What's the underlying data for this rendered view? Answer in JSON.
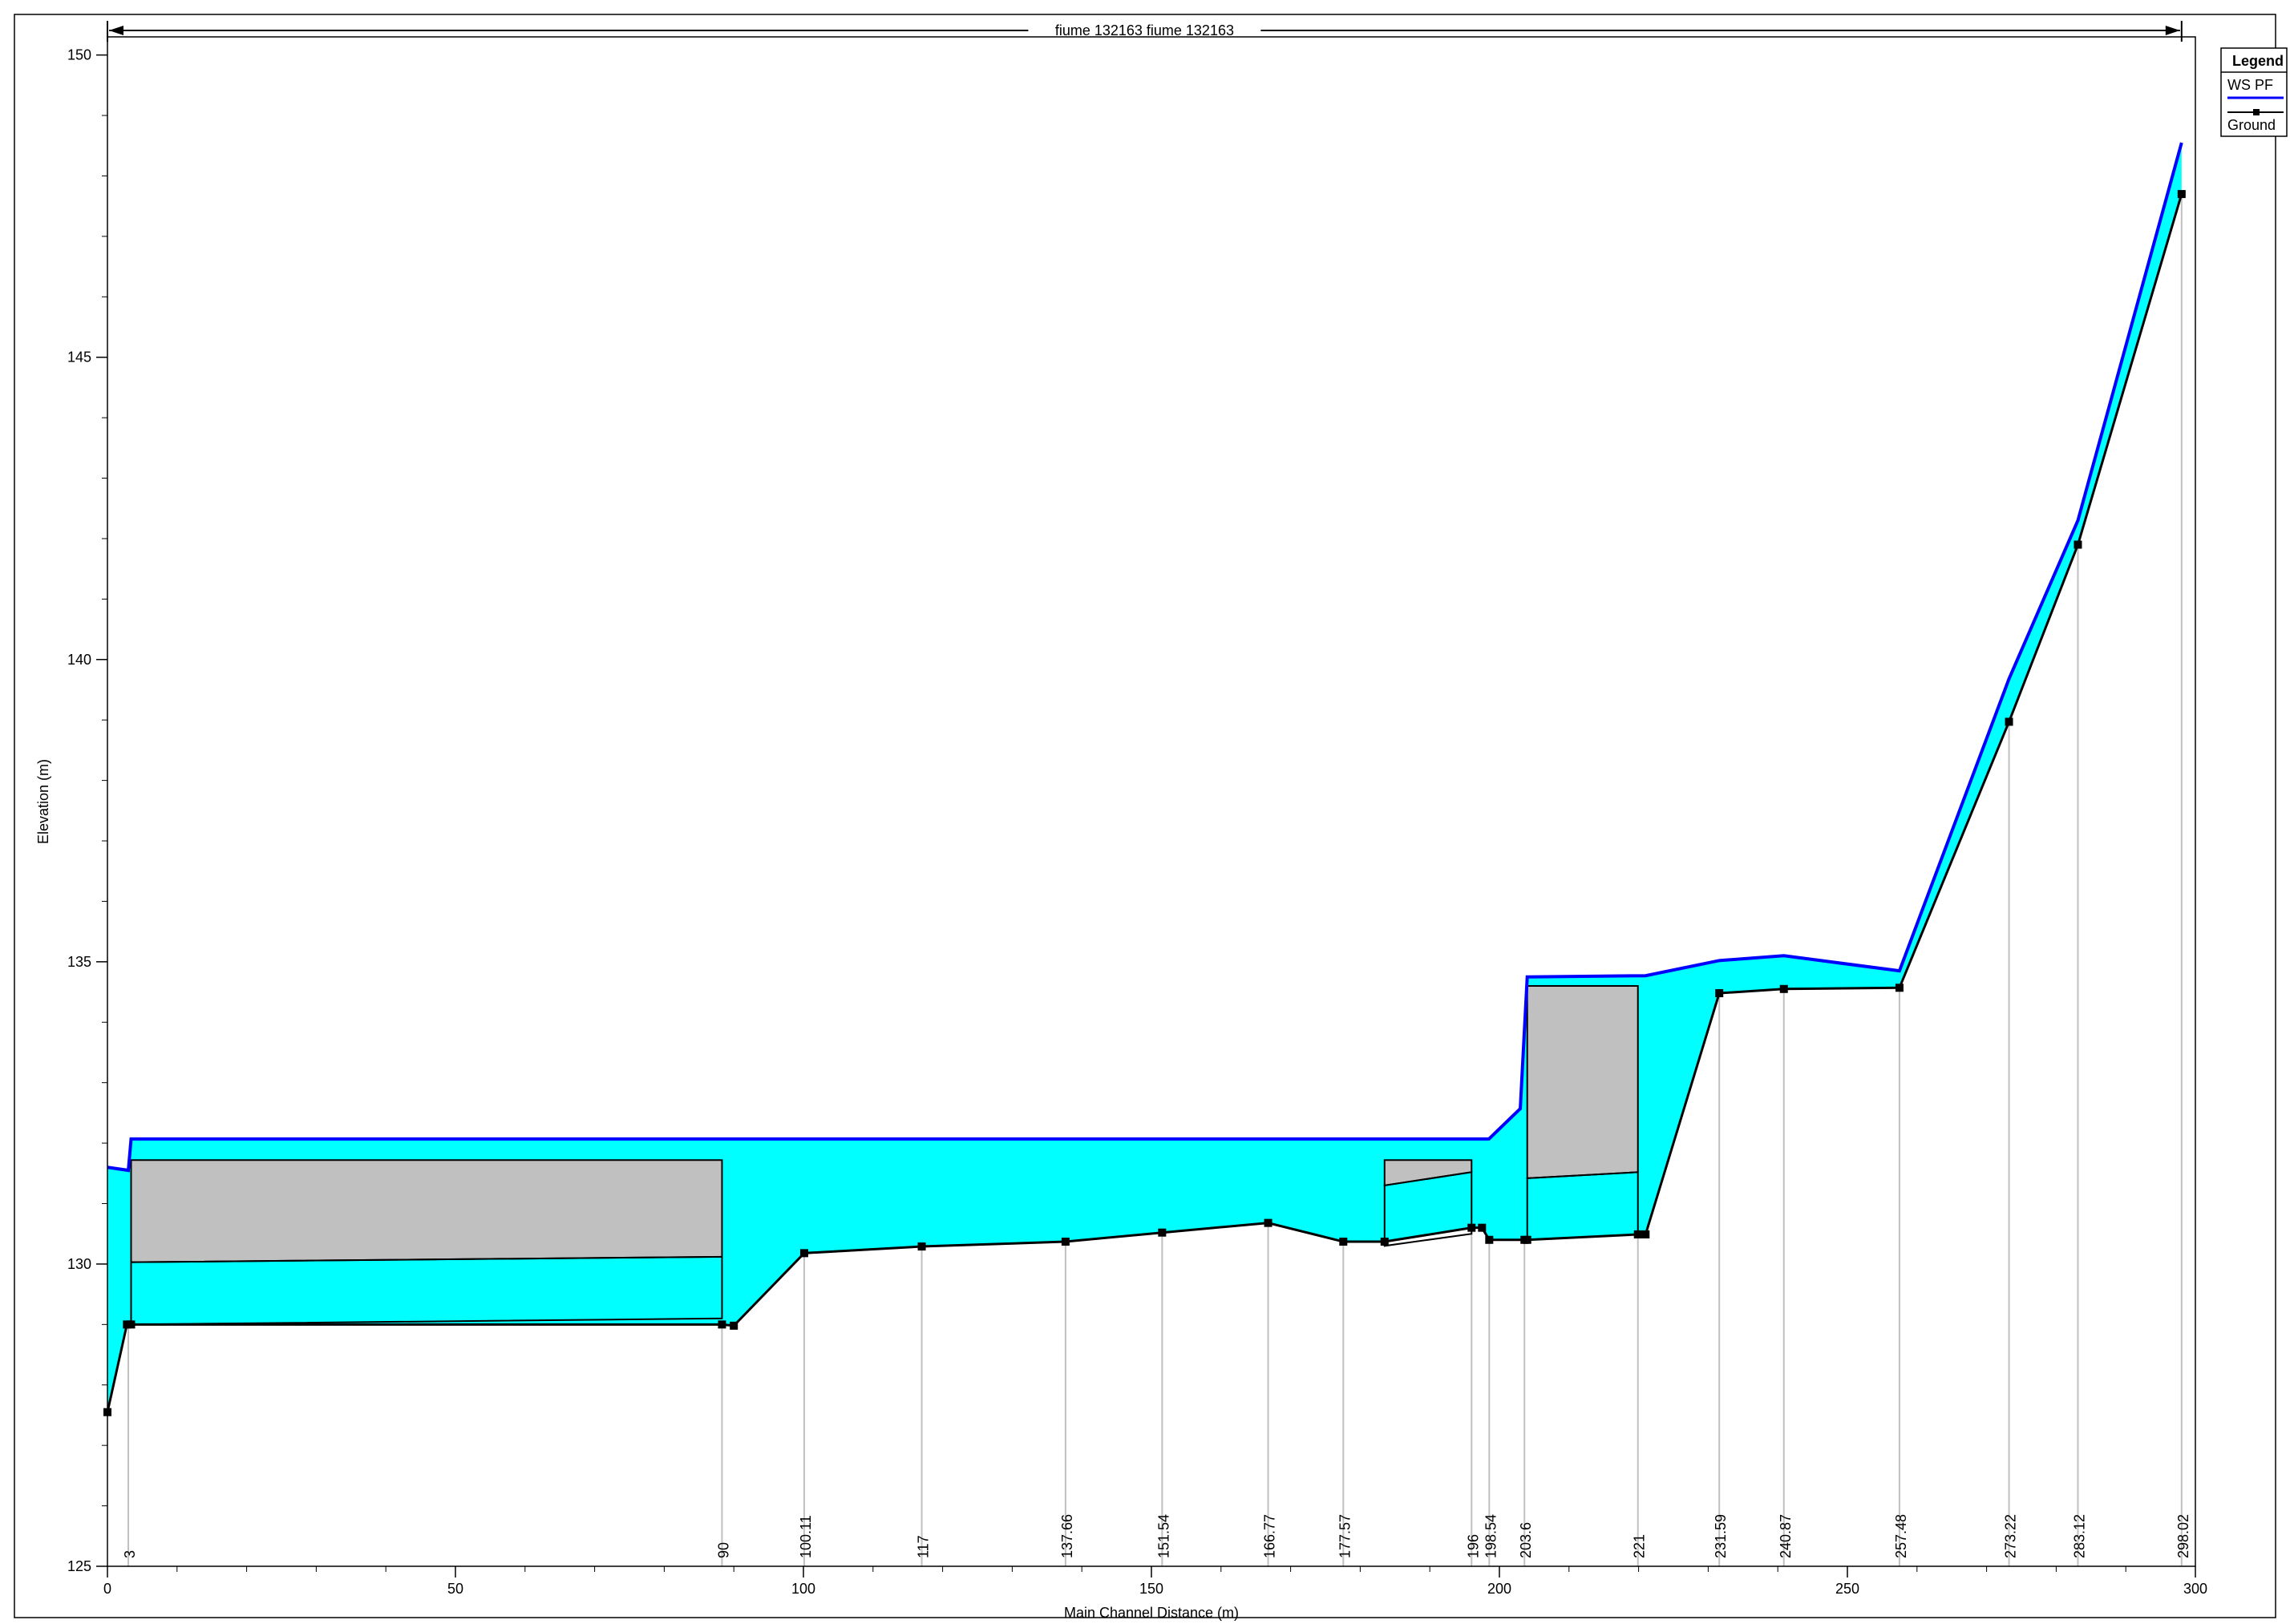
{
  "chart_data": {
    "type": "area",
    "title": "fiume 132163 fiume 132163",
    "xlabel": "Main Channel Distance (m)",
    "ylabel": "Elevation (m)",
    "xlim": [
      0,
      300
    ],
    "ylim": [
      125,
      150.3
    ],
    "x_ticks": [
      "0",
      "50",
      "100",
      "150",
      "200",
      "250",
      "300"
    ],
    "y_ticks": [
      "125",
      "130",
      "135",
      "140",
      "145",
      "150"
    ],
    "legend": {
      "title": "Legend",
      "placement": "top-right",
      "entries": [
        "WS PF",
        "Ground"
      ]
    },
    "colors": {
      "water_fill": "#00FFFF",
      "water_surface": "#0000FF",
      "ground": "#000000",
      "structure_fill": "#C0C0C0",
      "station_line": "#C0C0C0"
    },
    "stations": [
      {
        "label": "3",
        "x": 3
      },
      {
        "label": "90",
        "x": 88.3
      },
      {
        "label": "100.11",
        "x": 100.11
      },
      {
        "label": "117",
        "x": 117
      },
      {
        "label": "137.66",
        "x": 137.66
      },
      {
        "label": "151.54",
        "x": 151.54
      },
      {
        "label": "166.77",
        "x": 166.77
      },
      {
        "label": "177.57",
        "x": 177.57
      },
      {
        "label": "196",
        "x": 196
      },
      {
        "label": "198.54",
        "x": 198.54
      },
      {
        "label": "203.6",
        "x": 203.6
      },
      {
        "label": "221",
        "x": 219.9
      },
      {
        "label": "231.59",
        "x": 231.59
      },
      {
        "label": "240.87",
        "x": 240.87
      },
      {
        "label": "257.48",
        "x": 257.48
      },
      {
        "label": "273.22",
        "x": 273.22
      },
      {
        "label": "283.12",
        "x": 283.12
      },
      {
        "label": "298.02",
        "x": 298.02
      }
    ],
    "series": [
      {
        "name": "WS PF",
        "x": [
          0,
          3,
          3.4,
          196,
          198.5,
          203,
          204,
          221,
          231.59,
          240.87,
          257.48,
          273.22,
          283.12,
          298.02
        ],
        "values": [
          131.6,
          131.55,
          132.07,
          132.07,
          132.07,
          132.57,
          134.75,
          134.77,
          135.02,
          135.1,
          134.85,
          139.68,
          142.3,
          148.55
        ]
      },
      {
        "name": "Ground",
        "x": [
          0,
          2.8,
          3.4,
          88.3,
          90,
          100.11,
          117,
          137.66,
          151.54,
          166.77,
          177.57,
          183.5,
          196,
          197.5,
          198.54,
          203.6,
          204,
          219.9,
          221,
          231.59,
          240.87,
          257.48,
          273.22,
          283.12,
          298.02
        ],
        "values": [
          127.55,
          129.0,
          129.0,
          129.0,
          128.98,
          130.18,
          130.29,
          130.37,
          130.52,
          130.68,
          130.37,
          130.37,
          130.6,
          130.6,
          130.4,
          130.4,
          130.4,
          130.49,
          130.49,
          134.48,
          134.55,
          134.57,
          138.97,
          141.9,
          147.7
        ]
      }
    ],
    "structures": [
      {
        "x1": 3.4,
        "x2": 88.3,
        "top": 131.72,
        "bottom_left": 130.03,
        "bottom_right": 130.12,
        "base_left": 129.0,
        "base_right": 129.1
      },
      {
        "x1": 183.5,
        "x2": 196,
        "top": 131.72,
        "bottom_left": 131.3,
        "bottom_right": 131.52,
        "base_left": 130.3,
        "base_right": 130.5
      },
      {
        "x1": 204,
        "x2": 219.9,
        "top": 134.6,
        "bottom_left": 131.42,
        "bottom_right": 131.52,
        "base_left": 130.4,
        "base_right": 130.49
      }
    ]
  }
}
